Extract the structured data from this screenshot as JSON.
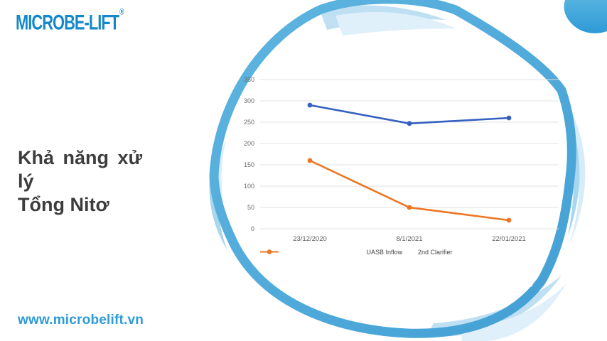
{
  "brand": {
    "logo_text": "MICROBE-LIFT",
    "registered_mark": "®",
    "logo_color": "#1588C8",
    "website": "www.microbelift.vn",
    "website_color": "#2E9BD6"
  },
  "title": {
    "line1": "Khả năng xử lý",
    "line2": "Tổng Nitơ"
  },
  "decor_colors": {
    "swoosh_main": "#4FA8D8",
    "swoosh_light": "#BEE0F2",
    "swoosh_lighter": "#E0F0FA",
    "corner_blob_top": "#54B2E0",
    "corner_blob_bottom": "#2E9AD6"
  },
  "chart_data": {
    "type": "line",
    "title": "",
    "xlabel": "",
    "ylabel": "",
    "x": [
      "23/12/2020",
      "8/1/2021",
      "22/01/2021"
    ],
    "series": [
      {
        "name": "UASB Inflow",
        "color": "#3560C0",
        "values": [
          290,
          247,
          260
        ]
      },
      {
        "name": "2nd Clarifier",
        "color": "#EC7623",
        "values": [
          160,
          50,
          20
        ]
      }
    ],
    "ylim": [
      0,
      350
    ],
    "ytick_step": 50,
    "grid": true,
    "gridline_color": "#E2E2E2",
    "legend_position": "bottom"
  }
}
